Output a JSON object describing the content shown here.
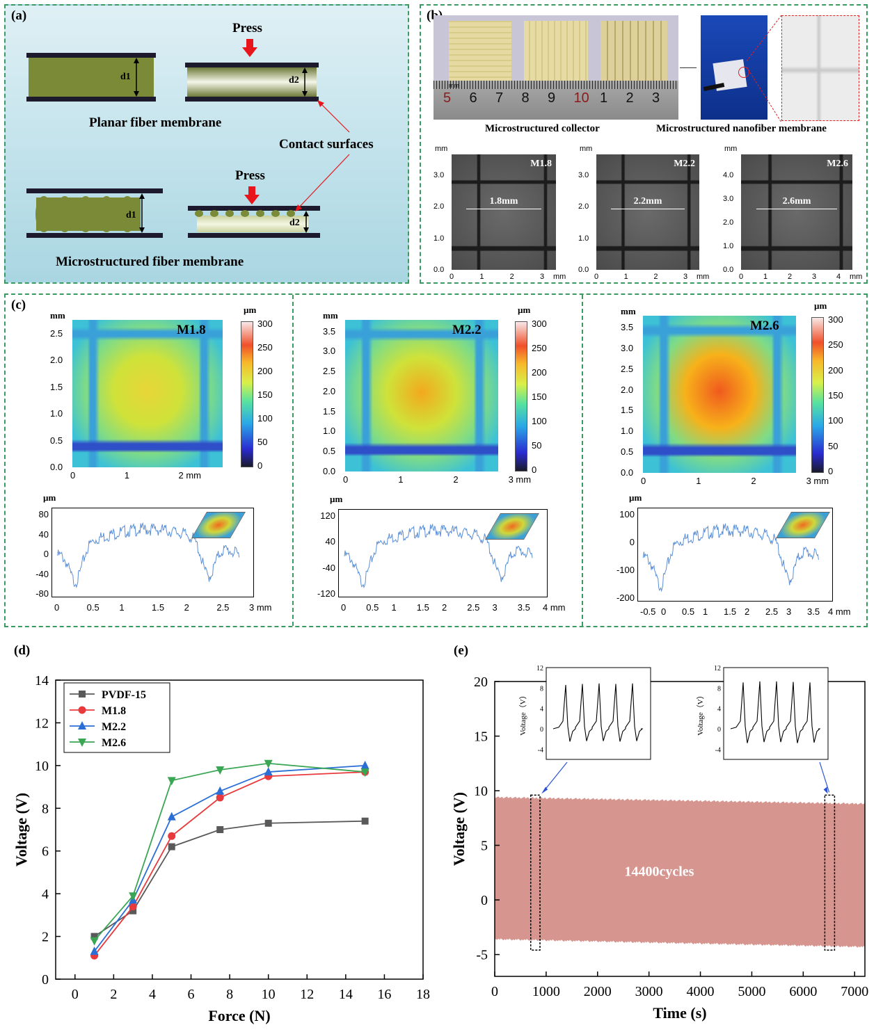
{
  "panel_a": {
    "label": "(a)",
    "press_top": "Press",
    "press_bottom": "Press",
    "d1_top": "d1",
    "d2_top": "d2",
    "d1_bottom": "d1",
    "d2_bottom": "d2",
    "planar_caption": "Planar fiber membrane",
    "contact_caption": "Contact surfaces",
    "micro_caption": "Microstructured fiber membrane"
  },
  "panel_b": {
    "label": "(b)",
    "ruler_unit": "mm",
    "ruler_numbers": [
      "5",
      "6",
      "7",
      "8",
      "9",
      "10",
      "1",
      "2",
      "3"
    ],
    "collector_caption": "Microstructured  collector",
    "membrane_caption": "Microstructured nanofiber membrane",
    "sem_images": [
      {
        "name": "M1.8",
        "dim": "1.8mm",
        "unit": "mm",
        "y_ticks": [
          "0.0",
          "1.0",
          "2.0",
          "3.0"
        ],
        "x_ticks": [
          "0",
          "1",
          "2",
          "3"
        ],
        "x_unit": "mm"
      },
      {
        "name": "M2.2",
        "dim": "2.2mm",
        "unit": "mm",
        "y_ticks": [
          "0.0",
          "1.0",
          "2.0",
          "3.0"
        ],
        "x_ticks": [
          "0",
          "1",
          "2",
          "3"
        ],
        "x_unit": "mm"
      },
      {
        "name": "M2.6",
        "dim": "2.6mm",
        "unit": "mm",
        "y_ticks": [
          "0.0",
          "1.0",
          "2.0",
          "3.0",
          "4.0"
        ],
        "x_ticks": [
          "0",
          "1",
          "2",
          "3",
          "4"
        ],
        "x_unit": "mm"
      }
    ]
  },
  "panel_c": {
    "label": "(c)",
    "maps": [
      {
        "name": "M1.8",
        "y_unit": "mm",
        "y_ticks": [
          "0.0",
          "0.5",
          "1.0",
          "1.5",
          "2.0",
          "2.5"
        ],
        "x_ticks": [
          "0",
          "1",
          "2 mm"
        ],
        "cb_unit": "µm",
        "cb_ticks": [
          "0",
          "50",
          "100",
          "150",
          "200",
          "250",
          "300"
        ],
        "profile_unit": "µm",
        "profile_y": [
          "80",
          "40",
          "0",
          "-40",
          "-80"
        ],
        "profile_x": [
          "0",
          "0.5",
          "1",
          "1.5",
          "2",
          "2.5",
          "3 mm"
        ]
      },
      {
        "name": "M2.2",
        "y_unit": "mm",
        "y_ticks": [
          "0.0",
          "0.5",
          "1.0",
          "1.5",
          "2.0",
          "2.5",
          "3.0",
          "3.5"
        ],
        "x_ticks": [
          "0",
          "1",
          "2",
          "3 mm"
        ],
        "cb_unit": "µm",
        "cb_ticks": [
          "0",
          "50",
          "100",
          "150",
          "200",
          "250",
          "300"
        ],
        "profile_unit": "µm",
        "profile_y": [
          "120",
          "40",
          "-40",
          "-120"
        ],
        "profile_x": [
          "0",
          "0.5",
          "1",
          "1.5",
          "2",
          "2.5",
          "3",
          "3.5",
          "4 mm"
        ]
      },
      {
        "name": "M2.6",
        "y_unit": "mm",
        "y_ticks": [
          "0.0",
          "0.5",
          "1.0",
          "1.5",
          "2.0",
          "2.5",
          "3.0",
          "3.5"
        ],
        "x_ticks": [
          "0",
          "1",
          "2",
          "3 mm"
        ],
        "cb_unit": "µm",
        "cb_ticks": [
          "0",
          "50",
          "100",
          "150",
          "200",
          "250",
          "300"
        ],
        "profile_unit": "µm",
        "profile_y": [
          "100",
          "0",
          "-100",
          "-200"
        ],
        "profile_x": [
          "-0.5",
          "0",
          "0.5",
          "1",
          "1.5",
          "2",
          "2.5",
          "3",
          "3.5",
          "4 mm"
        ]
      }
    ]
  },
  "chart_data": [
    {
      "type": "line",
      "panel_label": "(d)",
      "title": "",
      "xlabel": "Force (N)",
      "ylabel": "Voltage (V)",
      "xlim": [
        -1,
        18
      ],
      "ylim": [
        0,
        14
      ],
      "x_ticks": [
        0,
        2,
        4,
        6,
        8,
        10,
        12,
        14,
        16,
        18
      ],
      "y_ticks": [
        0,
        2,
        4,
        6,
        8,
        10,
        12,
        14
      ],
      "x": [
        1,
        3,
        5,
        7.5,
        10,
        15
      ],
      "legend_position": "top-left",
      "series": [
        {
          "name": "PVDF-15",
          "color": "#595959",
          "marker": "square",
          "values": [
            2.0,
            3.2,
            6.2,
            7.0,
            7.3,
            7.4
          ]
        },
        {
          "name": "M1.8",
          "color": "#e8393c",
          "marker": "circle",
          "values": [
            1.1,
            3.4,
            6.7,
            8.5,
            9.5,
            9.7
          ]
        },
        {
          "name": "M2.2",
          "color": "#2b6fd6",
          "marker": "triangle-up",
          "values": [
            1.3,
            3.7,
            7.6,
            8.8,
            9.7,
            10.0
          ]
        },
        {
          "name": "M2.6",
          "color": "#3aa553",
          "marker": "triangle-down",
          "values": [
            1.8,
            3.9,
            9.3,
            9.8,
            10.1,
            9.7
          ]
        }
      ]
    },
    {
      "type": "area",
      "panel_label": "(e)",
      "title": "",
      "xlabel": "Time (s)",
      "ylabel": "Voltage (V)",
      "xlim": [
        0,
        7200
      ],
      "ylim": [
        -7,
        20
      ],
      "x_ticks": [
        0,
        1000,
        2000,
        3000,
        4000,
        5000,
        6000,
        7000
      ],
      "y_ticks": [
        -5,
        0,
        5,
        10,
        15,
        20
      ],
      "fill_color": "#d6958f",
      "annotation": "14400cycles",
      "band_time": [
        0,
        7200
      ],
      "band_upper": [
        9.4,
        8.8
      ],
      "band_lower": [
        -3.6,
        -4.3
      ],
      "insets": [
        {
          "ylabel": "Voltage（V）",
          "y_ticks": [
            -4,
            0,
            4,
            8,
            12
          ],
          "peaks": [
            8.6,
            8.8,
            8.9,
            8.8,
            8.9
          ],
          "troughs": [
            -2.5,
            -2.4,
            -2.4,
            -2.5,
            -2.4
          ]
        },
        {
          "ylabel": "Voltage（V）",
          "y_ticks": [
            -4,
            0,
            4,
            8,
            12
          ],
          "peaks": [
            9.1,
            9.3,
            9.3,
            9.2,
            9.1
          ],
          "troughs": [
            -2.8,
            -2.6,
            -2.6,
            -2.8,
            -2.7
          ]
        }
      ]
    }
  ]
}
